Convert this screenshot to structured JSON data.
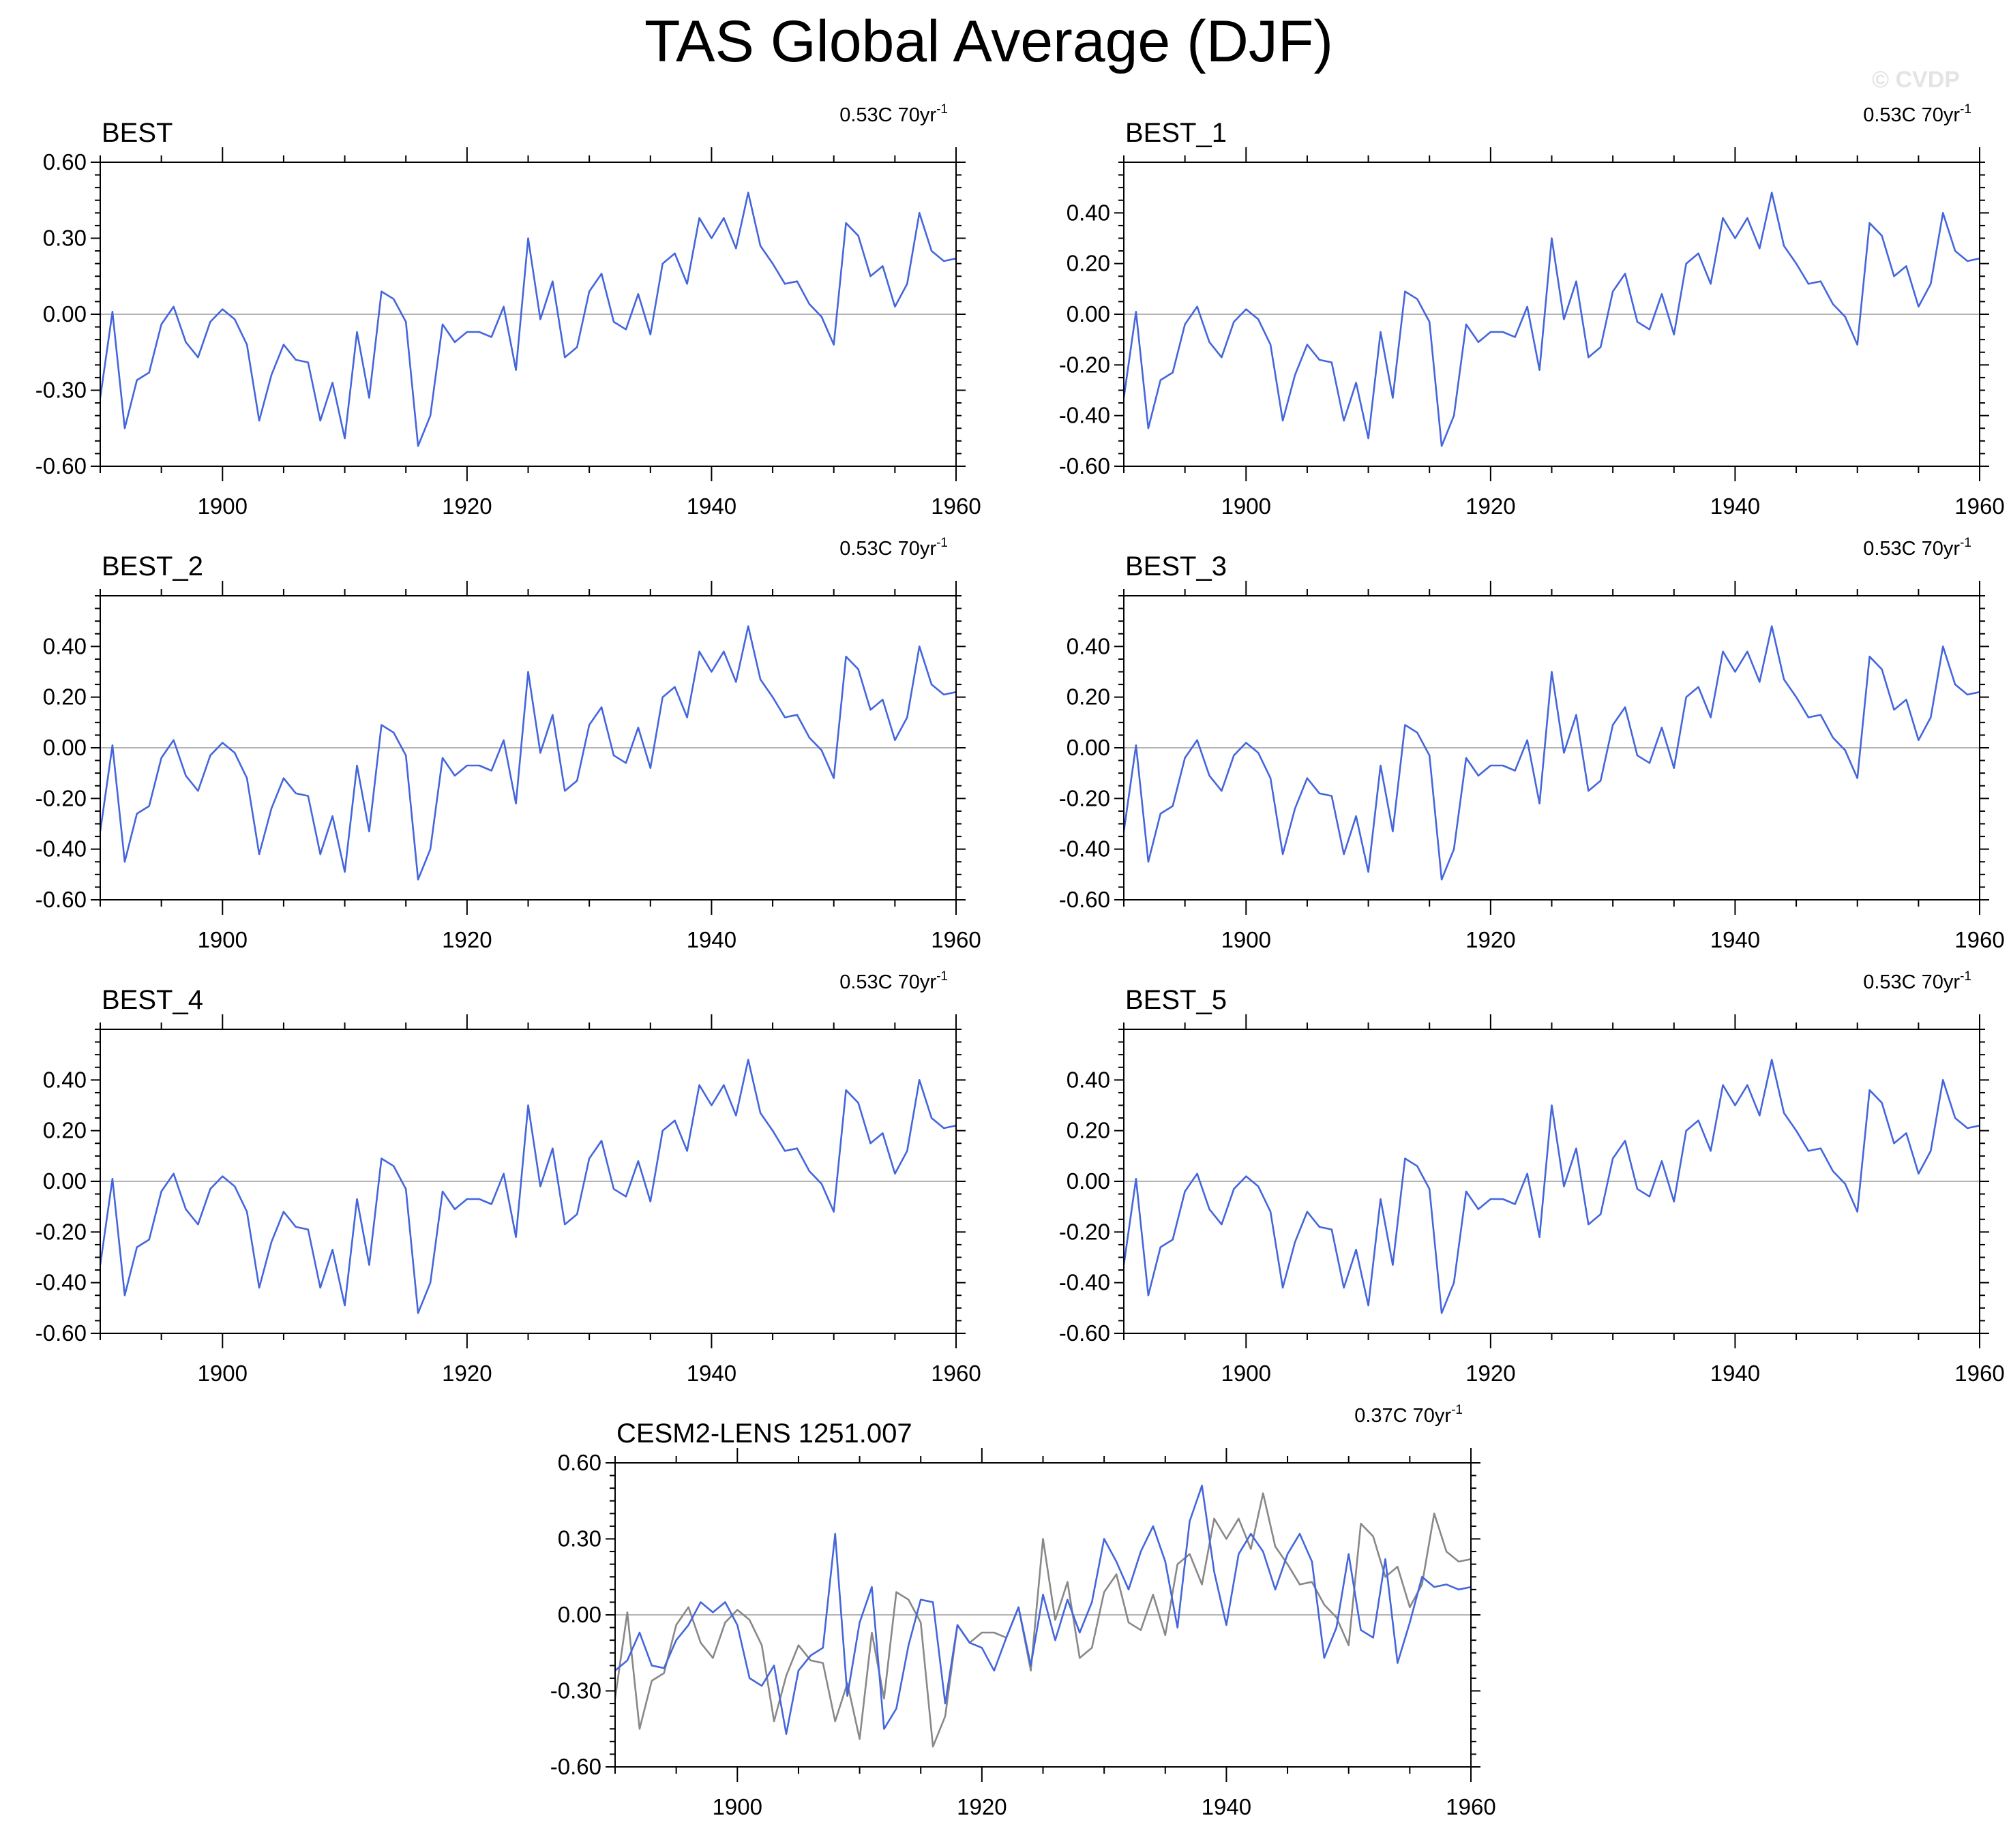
{
  "title": "TAS Global Average (DJF)",
  "watermark": "© CVDP",
  "colors": {
    "obs": "#4466dd",
    "model": "#888888",
    "zero_line": "#b4b4b4",
    "frame": "#000000"
  },
  "chart_data": [
    {
      "type": "line",
      "title": "BEST",
      "trend": "0.53C 70yr",
      "trend_sup": "-1",
      "ylim": [
        -0.6,
        0.6
      ],
      "yticks": [
        -0.6,
        -0.3,
        0,
        0.3,
        0.6
      ],
      "ytick_labels": [
        "-0.60",
        "-0.30",
        "0.00",
        "0.30",
        "0.60"
      ],
      "xlim": [
        1890,
        1960
      ],
      "xticks": [
        1900,
        1920,
        1940,
        1960
      ],
      "xtick_labels": [
        "1900",
        "1920",
        "1940",
        "1960"
      ],
      "series": [
        {
          "key": "best"
        }
      ]
    },
    {
      "type": "line",
      "title": "BEST_1",
      "trend": "0.53C 70yr",
      "trend_sup": "-1",
      "ylim": [
        -0.6,
        0.6
      ],
      "yticks": [
        -0.6,
        -0.4,
        -0.2,
        0,
        0.2,
        0.4
      ],
      "ytick_labels": [
        "-0.60",
        "-0.40",
        "-0.20",
        "0.00",
        "0.20",
        "0.40"
      ],
      "xlim": [
        1890,
        1960
      ],
      "xticks": [
        1900,
        1920,
        1940,
        1960
      ],
      "xtick_labels": [
        "1900",
        "1920",
        "1940",
        "1960"
      ],
      "series": [
        {
          "key": "best"
        }
      ]
    },
    {
      "type": "line",
      "title": "BEST_2",
      "trend": "0.53C 70yr",
      "trend_sup": "-1",
      "ylim": [
        -0.6,
        0.6
      ],
      "yticks": [
        -0.6,
        -0.4,
        -0.2,
        0,
        0.2,
        0.4
      ],
      "ytick_labels": [
        "-0.60",
        "-0.40",
        "-0.20",
        "0.00",
        "0.20",
        "0.40"
      ],
      "xlim": [
        1890,
        1960
      ],
      "xticks": [
        1900,
        1920,
        1940,
        1960
      ],
      "xtick_labels": [
        "1900",
        "1920",
        "1940",
        "1960"
      ],
      "series": [
        {
          "key": "best"
        }
      ]
    },
    {
      "type": "line",
      "title": "BEST_3",
      "trend": "0.53C 70yr",
      "trend_sup": "-1",
      "ylim": [
        -0.6,
        0.6
      ],
      "yticks": [
        -0.6,
        -0.4,
        -0.2,
        0,
        0.2,
        0.4
      ],
      "ytick_labels": [
        "-0.60",
        "-0.40",
        "-0.20",
        "0.00",
        "0.20",
        "0.40"
      ],
      "xlim": [
        1890,
        1960
      ],
      "xticks": [
        1900,
        1920,
        1940,
        1960
      ],
      "xtick_labels": [
        "1900",
        "1920",
        "1940",
        "1960"
      ],
      "series": [
        {
          "key": "best"
        }
      ]
    },
    {
      "type": "line",
      "title": "BEST_4",
      "trend": "0.53C 70yr",
      "trend_sup": "-1",
      "ylim": [
        -0.6,
        0.6
      ],
      "yticks": [
        -0.6,
        -0.4,
        -0.2,
        0,
        0.2,
        0.4
      ],
      "ytick_labels": [
        "-0.60",
        "-0.40",
        "-0.20",
        "0.00",
        "0.20",
        "0.40"
      ],
      "xlim": [
        1890,
        1960
      ],
      "xticks": [
        1900,
        1920,
        1940,
        1960
      ],
      "xtick_labels": [
        "1900",
        "1920",
        "1940",
        "1960"
      ],
      "series": [
        {
          "key": "best"
        }
      ]
    },
    {
      "type": "line",
      "title": "BEST_5",
      "trend": "0.53C 70yr",
      "trend_sup": "-1",
      "ylim": [
        -0.6,
        0.6
      ],
      "yticks": [
        -0.6,
        -0.4,
        -0.2,
        0,
        0.2,
        0.4
      ],
      "ytick_labels": [
        "-0.60",
        "-0.40",
        "-0.20",
        "0.00",
        "0.20",
        "0.40"
      ],
      "xlim": [
        1890,
        1960
      ],
      "xticks": [
        1900,
        1920,
        1940,
        1960
      ],
      "xtick_labels": [
        "1900",
        "1920",
        "1940",
        "1960"
      ],
      "series": [
        {
          "key": "best"
        }
      ]
    },
    {
      "type": "line",
      "title": "CESM2-LENS 1251.007",
      "trend": "0.37C 70yr",
      "trend_sup": "-1",
      "ylim": [
        -0.6,
        0.6
      ],
      "yticks": [
        -0.6,
        -0.3,
        0,
        0.3,
        0.6
      ],
      "ytick_labels": [
        "-0.60",
        "-0.30",
        "0.00",
        "0.30",
        "0.60"
      ],
      "xlim": [
        1890,
        1960
      ],
      "xticks": [
        1900,
        1920,
        1940,
        1960
      ],
      "xtick_labels": [
        "1900",
        "1920",
        "1940",
        "1960"
      ],
      "series": [
        {
          "key": "best",
          "color": "model"
        },
        {
          "key": "cesm",
          "color": "obs"
        }
      ]
    }
  ],
  "series_values": {
    "years": [
      1890,
      1891,
      1892,
      1893,
      1894,
      1895,
      1896,
      1897,
      1898,
      1899,
      1900,
      1901,
      1902,
      1903,
      1904,
      1905,
      1906,
      1907,
      1908,
      1909,
      1910,
      1911,
      1912,
      1913,
      1914,
      1915,
      1916,
      1917,
      1918,
      1919,
      1920,
      1921,
      1922,
      1923,
      1924,
      1925,
      1926,
      1927,
      1928,
      1929,
      1930,
      1931,
      1932,
      1933,
      1934,
      1935,
      1936,
      1937,
      1938,
      1939,
      1940,
      1941,
      1942,
      1943,
      1944,
      1945,
      1946,
      1947,
      1948,
      1949,
      1950,
      1951,
      1952,
      1953,
      1954,
      1955,
      1956,
      1957,
      1958,
      1959,
      1960
    ],
    "best": [
      -0.33,
      0.01,
      -0.45,
      -0.26,
      -0.23,
      -0.04,
      0.03,
      -0.11,
      -0.17,
      -0.03,
      0.02,
      -0.02,
      -0.12,
      -0.42,
      -0.24,
      -0.12,
      -0.18,
      -0.19,
      -0.42,
      -0.27,
      -0.49,
      -0.07,
      -0.33,
      0.09,
      0.06,
      -0.03,
      -0.52,
      -0.4,
      -0.04,
      -0.11,
      -0.07,
      -0.07,
      -0.09,
      0.03,
      -0.22,
      0.3,
      -0.02,
      0.13,
      -0.17,
      -0.13,
      0.09,
      0.16,
      -0.03,
      -0.06,
      0.08,
      -0.08,
      0.2,
      0.24,
      0.12,
      0.38,
      0.3,
      0.38,
      0.26,
      0.48,
      0.27,
      0.2,
      0.12,
      0.13,
      0.04,
      -0.01,
      -0.12,
      0.36,
      0.31,
      0.15,
      0.19,
      0.03,
      0.12,
      0.4,
      0.25,
      0.21,
      0.22
    ],
    "cesm": [
      -0.22,
      -0.18,
      -0.07,
      -0.2,
      -0.21,
      -0.1,
      -0.04,
      0.05,
      0.01,
      0.05,
      -0.04,
      -0.25,
      -0.28,
      -0.2,
      -0.47,
      -0.22,
      -0.16,
      -0.13,
      0.32,
      -0.32,
      -0.03,
      0.11,
      -0.45,
      -0.37,
      -0.12,
      0.06,
      0.05,
      -0.35,
      -0.04,
      -0.11,
      -0.13,
      -0.22,
      -0.09,
      0.03,
      -0.2,
      0.08,
      -0.1,
      0.06,
      -0.07,
      0.05,
      0.3,
      0.21,
      0.1,
      0.25,
      0.35,
      0.21,
      -0.05,
      0.37,
      0.51,
      0.17,
      -0.04,
      0.24,
      0.32,
      0.25,
      0.1,
      0.24,
      0.32,
      0.21,
      -0.17,
      -0.05,
      0.24,
      -0.06,
      -0.09,
      0.22,
      -0.19,
      -0.03,
      0.15,
      0.11,
      0.12,
      0.1,
      0.11
    ]
  }
}
